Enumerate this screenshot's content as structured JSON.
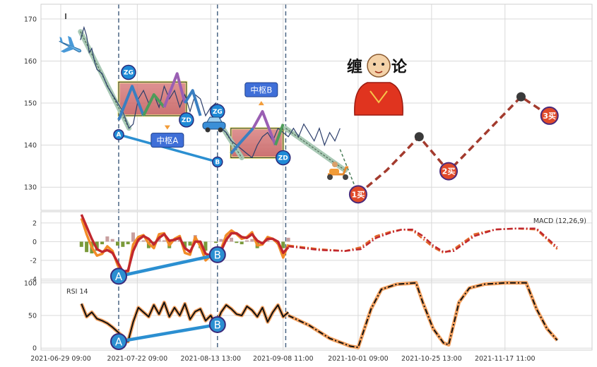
{
  "chart_data": [
    {
      "type": "line",
      "panel": "price",
      "yticks": [
        130,
        140,
        150,
        160,
        170
      ],
      "ylim": [
        124.5,
        173.5
      ],
      "x_range": [
        0,
        100
      ],
      "xticks": [
        "2021-06-29 09:00",
        "2021-07-22 09:00",
        "2021-08-13 13:00",
        "2021-09-08 11:00",
        "2021-10-01 09:00",
        "2021-10-25 13:00",
        "2021-11-17 11:00"
      ],
      "xtick_pos": [
        0,
        14.8,
        29.0,
        43.0,
        57.5,
        71.7,
        85.9
      ],
      "series": [
        {
          "id": "price",
          "color": "#2c3e6b",
          "x": [
            3.8,
            4.5,
            5,
            5.5,
            6,
            6.5,
            7,
            8,
            9,
            10,
            11,
            12,
            12.6,
            13.2,
            14,
            15,
            16,
            17,
            18,
            19,
            20,
            21,
            22,
            23,
            24,
            25,
            26,
            27,
            28,
            29,
            30,
            31,
            32,
            33,
            34,
            35,
            36,
            37,
            38,
            39,
            40,
            41,
            42,
            43,
            44,
            45,
            46,
            47,
            48,
            49,
            50,
            51,
            52,
            53,
            54
          ],
          "y": [
            165,
            168,
            166,
            162,
            163,
            160,
            158,
            157,
            154,
            152,
            150,
            148,
            146,
            144,
            145,
            151,
            153,
            150,
            152,
            149,
            154,
            151,
            153,
            149,
            152,
            148,
            152,
            151,
            147,
            149,
            150,
            144,
            143,
            141,
            140,
            139,
            138,
            137,
            140,
            142,
            143,
            141,
            144,
            143,
            142,
            144,
            142,
            145,
            143,
            141,
            144,
            140,
            143,
            141,
            144
          ]
        },
        {
          "id": "trend-1",
          "color": "#a9c9b5",
          "x": [
            3.8,
            13.2
          ],
          "y": [
            167,
            144
          ]
        },
        {
          "id": "trend-2",
          "color": "#a9c9b5",
          "x": [
            29.8,
            35
          ],
          "y": [
            147,
            137
          ]
        },
        {
          "id": "trend-3",
          "color": "#a9c9b5",
          "x": [
            43.5,
            55
          ],
          "y": [
            144,
            134
          ]
        },
        {
          "id": "forecast",
          "color": "#a33b2e",
          "x": [
            57.5,
            63,
            69.3,
            75,
            89,
            94.5
          ],
          "y": [
            128.3,
            134,
            142,
            133.8,
            151.5,
            147
          ]
        },
        {
          "id": "pre-forecast",
          "color": "#4a7d58",
          "x": [
            54,
            57.5
          ],
          "y": [
            139,
            128.3
          ]
        }
      ],
      "centers": [
        {
          "id": "A",
          "label": "中枢A",
          "x0": 11.2,
          "x1": 24.3,
          "y0": 147,
          "y1": 155
        },
        {
          "id": "B",
          "label": "中枢B",
          "x0": 32.9,
          "x1": 43,
          "y0": 137,
          "y1": 144
        }
      ],
      "zigzag": [
        {
          "color": "#3a7fc1",
          "pts": [
            [
              11.2,
              146
            ],
            [
              13.8,
              154
            ],
            [
              16,
              147
            ]
          ]
        },
        {
          "color": "#4e9b5a",
          "pts": [
            [
              16,
              147
            ],
            [
              18,
              152
            ],
            [
              20,
              149
            ]
          ]
        },
        {
          "color": "#9a5fb3",
          "pts": [
            [
              20,
              149
            ],
            [
              22.5,
              157
            ],
            [
              24,
              150
            ]
          ]
        },
        {
          "color": "#3a7fc1",
          "pts": [
            [
              24,
              150
            ],
            [
              25.5,
              153
            ],
            [
              27,
              147
            ]
          ]
        },
        {
          "color": "#3a7fc1",
          "pts": [
            [
              32.9,
              138
            ],
            [
              35,
              141
            ],
            [
              37.2,
              144
            ]
          ]
        },
        {
          "color": "#9a5fb3",
          "pts": [
            [
              37.2,
              144
            ],
            [
              39,
              148
            ],
            [
              41.5,
              140
            ]
          ]
        },
        {
          "color": "#4e9b5a",
          "pts": [
            [
              41.5,
              140
            ],
            [
              43,
              145
            ]
          ]
        }
      ],
      "ab_line": [
        [
          11.2,
          142.5
        ],
        [
          30.3,
          136
        ]
      ],
      "bubbles": [
        {
          "text": "ZG",
          "x": 13.1,
          "y": 157.3
        },
        {
          "text": "ZD",
          "x": 24.3,
          "y": 146
        },
        {
          "text": "ZG",
          "x": 30.3,
          "y": 148
        },
        {
          "text": "ZD",
          "x": 43,
          "y": 137
        },
        {
          "text": "A",
          "x": 11.2,
          "y": 142.5
        },
        {
          "text": "B",
          "x": 30.3,
          "y": 136
        }
      ],
      "signals": [
        {
          "text": "1买",
          "x": 57.5,
          "y": 128.3,
          "type": "buy"
        },
        {
          "text": "2买",
          "x": 75,
          "y": 133.8,
          "type": "buy"
        },
        {
          "text": "3买",
          "x": 94.5,
          "y": 147,
          "type": "buy"
        },
        {
          "text": "",
          "x": 69.3,
          "y": 142,
          "type": "sell"
        },
        {
          "text": "",
          "x": 89,
          "y": 151.5,
          "type": "sell"
        }
      ],
      "vlines": [
        11.2,
        30.3,
        43.5
      ],
      "monk_text": [
        "缠",
        "论"
      ]
    },
    {
      "type": "line",
      "panel": "macd",
      "title": "MACD (12,26,9)",
      "yticks": [
        -4,
        -2,
        0,
        2
      ],
      "ylim": [
        -4.2,
        3.2
      ],
      "series": [
        {
          "id": "dif",
          "color": "#f28c28",
          "x": [
            4,
            5,
            6,
            7,
            8,
            9,
            10,
            11,
            12,
            13,
            14,
            15,
            16,
            17,
            18,
            19,
            20,
            21,
            22,
            23,
            24,
            25,
            26,
            27,
            28,
            29,
            30,
            31,
            32,
            33,
            34,
            35,
            36,
            37,
            38,
            39,
            40,
            41,
            42,
            43,
            44
          ],
          "y": [
            2.5,
            0.8,
            -0.6,
            -1.5,
            -1.3,
            -0.5,
            -1,
            -2.5,
            -3.6,
            -3.3,
            -0.3,
            0.5,
            0.7,
            -0.2,
            -0.7,
            0.8,
            0.9,
            -0.4,
            0.3,
            0.6,
            -1.2,
            -1.4,
            0.5,
            -0.5,
            -2,
            -1.5,
            -1.5,
            -0.8,
            0.7,
            1.2,
            0.8,
            0.3,
            0.5,
            1,
            -0.4,
            -0.3,
            0.5,
            0.3,
            -0.2,
            -1.7,
            -0.3
          ]
        },
        {
          "id": "dea",
          "color": "#c1272d",
          "x": [
            4,
            5,
            6,
            7,
            8,
            9,
            10,
            11,
            12,
            13,
            14,
            15,
            16,
            17,
            18,
            19,
            20,
            21,
            22,
            23,
            24,
            25,
            26,
            27,
            28,
            29,
            30,
            31,
            32,
            33,
            34,
            35,
            36,
            37,
            38,
            39,
            40,
            41,
            42,
            43,
            44
          ],
          "y": [
            2.9,
            1.6,
            0.3,
            -0.8,
            -1.1,
            -0.9,
            -1.2,
            -2.2,
            -3.2,
            -3.1,
            -1.0,
            0.2,
            0.6,
            0.3,
            -0.3,
            0.4,
            0.8,
            0.1,
            0.2,
            0.4,
            -0.7,
            -1.1,
            0.0,
            0.0,
            -1.3,
            -1.5,
            -1.4,
            -1.0,
            0.2,
            0.9,
            0.9,
            0.5,
            0.4,
            0.8,
            0.1,
            -0.2,
            0.3,
            0.3,
            0.0,
            -1.2,
            -0.6
          ]
        },
        {
          "id": "macd-forecast-a",
          "color": "#e0672a",
          "x": [
            44,
            50,
            55,
            58,
            61,
            64,
            66,
            68,
            70,
            72,
            74,
            76,
            80,
            84,
            88,
            92,
            96
          ],
          "y": [
            -0.4,
            -0.8,
            -1.0,
            -0.6,
            0.6,
            1.1,
            1.3,
            1.2,
            0.3,
            -0.6,
            -1.2,
            -0.8,
            0.8,
            1.3,
            1.4,
            1.3,
            -0.8
          ]
        },
        {
          "id": "macd-forecast-b",
          "color": "#c1272d",
          "x": [
            44,
            50,
            55,
            58,
            61,
            64,
            66,
            68,
            70,
            72,
            74,
            76,
            80,
            84,
            88,
            92,
            96
          ],
          "y": [
            -0.5,
            -0.9,
            -1.0,
            -0.8,
            0.4,
            1.0,
            1.3,
            1.3,
            0.6,
            -0.4,
            -1.1,
            -1.0,
            0.6,
            1.3,
            1.4,
            1.4,
            -0.6
          ]
        }
      ],
      "ab_line": [
        [
          11.2,
          -3.7
        ],
        [
          30.3,
          -1.4
        ]
      ],
      "ab_labels": [
        {
          "text": "A",
          "x": 11.2,
          "y": -3.7
        },
        {
          "text": "B",
          "x": 30.3,
          "y": -1.4
        }
      ]
    },
    {
      "type": "line",
      "panel": "rsi",
      "title": "RSI 14",
      "yticks": [
        0,
        50,
        100
      ],
      "ylim": [
        -3,
        103
      ],
      "series": [
        {
          "id": "rsi",
          "color": "#111111",
          "halo": "#f4a261",
          "x": [
            4,
            5,
            6,
            7,
            8,
            9,
            10,
            11,
            12,
            13,
            14,
            15,
            16,
            17,
            18,
            19,
            20,
            21,
            22,
            23,
            24,
            25,
            26,
            27,
            28,
            29,
            30,
            31,
            32,
            33,
            34,
            35,
            36,
            37,
            38,
            39,
            40,
            41,
            42,
            43,
            44
          ],
          "y": [
            68,
            48,
            55,
            45,
            42,
            38,
            32,
            25,
            18,
            10,
            40,
            62,
            55,
            48,
            66,
            52,
            70,
            48,
            62,
            50,
            68,
            44,
            56,
            60,
            42,
            50,
            35,
            55,
            66,
            60,
            52,
            50,
            64,
            58,
            48,
            62,
            40,
            55,
            66,
            48,
            55
          ]
        },
        {
          "id": "rsi-forecast",
          "color": "#111111",
          "halo": "#f4a261",
          "dash": true,
          "x": [
            44,
            48,
            52,
            56,
            57.5,
            60,
            62,
            65,
            67,
            68.7,
            70,
            72,
            74,
            75,
            77,
            79,
            82,
            86,
            88,
            90,
            92,
            94,
            96
          ],
          "y": [
            50,
            35,
            15,
            3,
            1,
            60,
            90,
            98,
            99,
            100,
            70,
            30,
            8,
            5,
            70,
            92,
            98,
            100,
            100,
            100,
            60,
            30,
            12
          ]
        }
      ],
      "ab_line": [
        [
          11.2,
          10
        ],
        [
          30.3,
          36
        ]
      ],
      "ab_labels": [
        {
          "text": "A",
          "x": 11.2,
          "y": 10
        },
        {
          "text": "B",
          "x": 30.3,
          "y": 36
        }
      ]
    }
  ]
}
